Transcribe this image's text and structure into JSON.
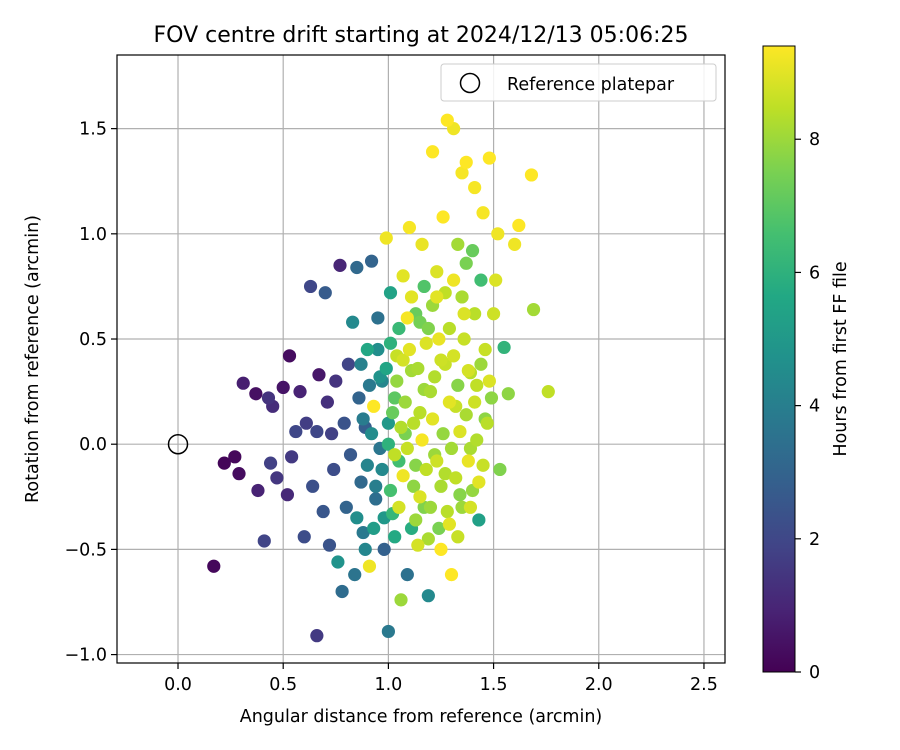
{
  "chart_data": {
    "type": "scatter",
    "title": "FOV centre drift starting at 2024/12/13 05:06:25",
    "xlabel": "Angular distance from reference (arcmin)",
    "ylabel": "Rotation from reference (arcmin)",
    "xlim": [
      -0.29,
      2.6
    ],
    "ylim": [
      -1.04,
      1.85
    ],
    "xticks": [
      0.0,
      0.5,
      1.0,
      1.5,
      2.0,
      2.5
    ],
    "xtick_labels": [
      "0.0",
      "0.5",
      "1.0",
      "1.5",
      "2.0",
      "2.5"
    ],
    "yticks": [
      -1.0,
      -0.5,
      0.0,
      0.5,
      1.0,
      1.5
    ],
    "ytick_labels": [
      "−1.0",
      "−0.5",
      "0.0",
      "0.5",
      "1.0",
      "1.5"
    ],
    "grid": true,
    "legend": {
      "position": "top-right",
      "entries": [
        {
          "label": "Reference platepar",
          "marker": "open-circle"
        }
      ]
    },
    "reference_point": {
      "x": 0.0,
      "y": 0.0
    },
    "colorbar": {
      "label": "Hours from first FF file",
      "min": 0,
      "max": 9.4,
      "ticks": [
        0,
        2,
        4,
        6,
        8
      ],
      "tick_labels": [
        "0",
        "2",
        "4",
        "6",
        "8"
      ],
      "colormap": "viridis"
    },
    "series": [
      {
        "color_by": "hours",
        "points": [
          [
            0.17,
            -0.58,
            0.2
          ],
          [
            0.22,
            -0.09,
            0.1
          ],
          [
            0.27,
            -0.06,
            0.2
          ],
          [
            0.29,
            -0.14,
            0.3
          ],
          [
            0.31,
            0.29,
            0.8
          ],
          [
            0.37,
            0.24,
            0.4
          ],
          [
            0.38,
            -0.22,
            0.9
          ],
          [
            0.41,
            -0.46,
            1.9
          ],
          [
            0.43,
            0.22,
            1.4
          ],
          [
            0.44,
            -0.09,
            1.8
          ],
          [
            0.45,
            0.18,
            1.2
          ],
          [
            0.47,
            -0.16,
            1.5
          ],
          [
            0.5,
            0.27,
            0.5
          ],
          [
            0.52,
            -0.24,
            1.1
          ],
          [
            0.53,
            0.42,
            0.3
          ],
          [
            0.54,
            -0.06,
            1.6
          ],
          [
            0.56,
            0.06,
            2.0
          ],
          [
            0.58,
            0.25,
            0.9
          ],
          [
            0.6,
            -0.44,
            2.2
          ],
          [
            0.61,
            0.1,
            1.7
          ],
          [
            0.63,
            0.75,
            2.0
          ],
          [
            0.64,
            -0.2,
            2.3
          ],
          [
            0.66,
            -0.91,
            1.6
          ],
          [
            0.66,
            0.06,
            2.0
          ],
          [
            0.67,
            0.33,
            0.6
          ],
          [
            0.69,
            -0.32,
            2.5
          ],
          [
            0.7,
            0.72,
            2.7
          ],
          [
            0.71,
            0.2,
            1.3
          ],
          [
            0.72,
            -0.48,
            2.4
          ],
          [
            0.73,
            0.05,
            1.8
          ],
          [
            0.74,
            -0.12,
            2.2
          ],
          [
            0.75,
            0.3,
            1.4
          ],
          [
            0.76,
            -0.56,
            4.8
          ],
          [
            0.77,
            0.85,
            1.0
          ],
          [
            0.78,
            -0.7,
            3.3
          ],
          [
            0.79,
            0.1,
            2.4
          ],
          [
            0.8,
            -0.3,
            3.0
          ],
          [
            0.81,
            0.38,
            1.9
          ],
          [
            0.82,
            -0.05,
            2.6
          ],
          [
            0.83,
            0.58,
            4.4
          ],
          [
            0.84,
            -0.62,
            3.6
          ],
          [
            0.85,
            0.84,
            3.2
          ],
          [
            0.86,
            0.22,
            3.0
          ],
          [
            0.87,
            -0.18,
            3.2
          ],
          [
            0.88,
            -0.42,
            3.8
          ],
          [
            0.89,
            0.08,
            2.8
          ],
          [
            0.9,
            0.45,
            5.6
          ],
          [
            0.91,
            -0.58,
            9.2
          ],
          [
            0.92,
            0.87,
            3.0
          ],
          [
            0.93,
            0.18,
            9.4
          ],
          [
            0.94,
            -0.26,
            3.4
          ],
          [
            0.95,
            0.6,
            3.5
          ],
          [
            0.96,
            -0.02,
            3.7
          ],
          [
            0.97,
            0.3,
            4.3
          ],
          [
            0.98,
            -0.5,
            2.9
          ],
          [
            0.99,
            0.98,
            9.2
          ],
          [
            1.0,
            0.1,
            5.0
          ],
          [
            1.0,
            -0.89,
            3.8
          ],
          [
            1.01,
            0.72,
            5.4
          ],
          [
            1.02,
            -0.33,
            6.2
          ],
          [
            1.03,
            0.22,
            7.0
          ],
          [
            1.04,
            0.42,
            8.6
          ],
          [
            1.05,
            -0.08,
            6.5
          ],
          [
            1.06,
            -0.74,
            8.0
          ],
          [
            1.07,
            0.8,
            9.0
          ],
          [
            1.08,
            0.05,
            7.5
          ],
          [
            1.09,
            -0.62,
            3.5
          ],
          [
            1.1,
            1.03,
            9.3
          ],
          [
            1.11,
            0.35,
            8.1
          ],
          [
            1.12,
            -0.2,
            7.8
          ],
          [
            1.13,
            0.62,
            7.2
          ],
          [
            1.14,
            -0.48,
            8.8
          ],
          [
            1.15,
            0.15,
            8.4
          ],
          [
            1.16,
            0.95,
            9.1
          ],
          [
            1.17,
            -0.3,
            7.6
          ],
          [
            1.18,
            0.48,
            8.9
          ],
          [
            1.19,
            -0.72,
            4.4
          ],
          [
            1.2,
            0.25,
            8.2
          ],
          [
            1.21,
            1.39,
            9.4
          ],
          [
            1.22,
            -0.05,
            8.0
          ],
          [
            1.23,
            0.7,
            9.0
          ],
          [
            1.24,
            -0.4,
            7.5
          ],
          [
            1.25,
            0.4,
            8.7
          ],
          [
            1.26,
            1.08,
            9.4
          ],
          [
            1.27,
            -0.14,
            8.3
          ],
          [
            1.28,
            1.54,
            9.4
          ],
          [
            1.29,
            0.55,
            8.4
          ],
          [
            1.3,
            -0.62,
            9.4
          ],
          [
            1.31,
            1.5,
            9.2
          ],
          [
            1.32,
            0.18,
            8.6
          ],
          [
            1.33,
            0.95,
            8.1
          ],
          [
            1.34,
            -0.24,
            7.7
          ],
          [
            1.35,
            1.29,
            9.3
          ],
          [
            1.36,
            0.62,
            8.9
          ],
          [
            1.37,
            1.34,
            9.4
          ],
          [
            1.38,
            0.35,
            8.8
          ],
          [
            1.39,
            -0.02,
            8.2
          ],
          [
            1.4,
            0.92,
            7.2
          ],
          [
            1.41,
            1.22,
            9.3
          ],
          [
            1.42,
            0.28,
            8.5
          ],
          [
            1.43,
            -0.36,
            5.3
          ],
          [
            1.44,
            0.78,
            6.5
          ],
          [
            1.45,
            1.1,
            9.3
          ],
          [
            1.46,
            0.45,
            8.6
          ],
          [
            1.47,
            0.1,
            8.4
          ],
          [
            1.48,
            1.36,
            9.4
          ],
          [
            1.49,
            0.22,
            7.8
          ],
          [
            1.5,
            0.62,
            8.7
          ],
          [
            1.51,
            0.78,
            8.9
          ],
          [
            1.52,
            1.0,
            9.2
          ],
          [
            1.53,
            -0.12,
            7.6
          ],
          [
            1.55,
            0.46,
            6.1
          ],
          [
            1.57,
            0.24,
            7.8
          ],
          [
            1.6,
            0.95,
            9.2
          ],
          [
            1.62,
            1.04,
            9.4
          ],
          [
            1.68,
            1.28,
            9.4
          ],
          [
            1.69,
            0.64,
            8.1
          ],
          [
            1.76,
            0.25,
            8.5
          ],
          [
            0.88,
            0.12,
            3.9
          ],
          [
            0.9,
            -0.1,
            4.2
          ],
          [
            0.92,
            0.05,
            4.5
          ],
          [
            0.94,
            -0.2,
            4.0
          ],
          [
            0.96,
            0.32,
            4.8
          ],
          [
            0.98,
            -0.35,
            5.0
          ],
          [
            1.0,
            0.0,
            6.0
          ],
          [
            1.01,
            -0.22,
            6.6
          ],
          [
            1.02,
            0.15,
            7.2
          ],
          [
            1.03,
            -0.05,
            8.5
          ],
          [
            1.04,
            0.3,
            7.9
          ],
          [
            1.05,
            -0.3,
            8.8
          ],
          [
            1.06,
            0.08,
            8.3
          ],
          [
            1.07,
            -0.15,
            9.2
          ],
          [
            1.08,
            0.2,
            8.0
          ],
          [
            1.09,
            -0.02,
            8.6
          ],
          [
            1.1,
            0.45,
            9.0
          ],
          [
            1.11,
            -0.4,
            5.8
          ],
          [
            1.12,
            0.1,
            8.4
          ],
          [
            1.13,
            -0.1,
            7.7
          ],
          [
            1.14,
            0.36,
            8.2
          ],
          [
            1.15,
            -0.25,
            8.9
          ],
          [
            1.16,
            0.02,
            9.3
          ],
          [
            1.17,
            0.26,
            8.0
          ],
          [
            1.18,
            -0.12,
            8.5
          ],
          [
            1.19,
            0.55,
            7.6
          ],
          [
            1.2,
            -0.3,
            8.0
          ],
          [
            1.21,
            0.12,
            9.0
          ],
          [
            1.22,
            0.32,
            8.3
          ],
          [
            1.23,
            -0.08,
            8.7
          ],
          [
            1.24,
            0.5,
            9.1
          ],
          [
            1.25,
            -0.2,
            8.2
          ],
          [
            1.26,
            0.05,
            7.9
          ],
          [
            1.27,
            0.38,
            8.6
          ],
          [
            1.28,
            -0.32,
            8.4
          ],
          [
            1.29,
            0.2,
            9.0
          ],
          [
            1.3,
            -0.02,
            8.1
          ],
          [
            1.31,
            0.42,
            8.8
          ],
          [
            1.32,
            -0.16,
            8.5
          ],
          [
            1.33,
            0.28,
            7.7
          ],
          [
            1.34,
            0.06,
            8.9
          ],
          [
            1.35,
            -0.3,
            8.0
          ],
          [
            1.36,
            0.5,
            8.6
          ],
          [
            1.37,
            0.14,
            8.2
          ],
          [
            1.38,
            -0.08,
            9.1
          ],
          [
            1.39,
            0.34,
            8.4
          ],
          [
            1.4,
            -0.22,
            7.9
          ],
          [
            1.41,
            0.2,
            8.7
          ],
          [
            1.42,
            0.02,
            8.3
          ],
          [
            1.44,
            0.38,
            8.0
          ],
          [
            1.45,
            -0.1,
            8.6
          ],
          [
            1.46,
            0.12,
            7.8
          ],
          [
            1.48,
            0.3,
            8.9
          ],
          [
            0.85,
            -0.35,
            4.6
          ],
          [
            0.87,
            0.38,
            4.1
          ],
          [
            0.89,
            -0.5,
            4.3
          ],
          [
            0.91,
            0.28,
            3.8
          ],
          [
            0.93,
            -0.4,
            5.2
          ],
          [
            0.95,
            0.45,
            4.6
          ],
          [
            0.97,
            -0.12,
            4.4
          ],
          [
            0.99,
            0.36,
            5.5
          ],
          [
            1.01,
            0.48,
            6.0
          ],
          [
            1.03,
            -0.44,
            5.7
          ],
          [
            1.05,
            0.55,
            6.3
          ],
          [
            1.07,
            0.4,
            8.8
          ],
          [
            1.09,
            0.6,
            9.3
          ],
          [
            1.11,
            0.7,
            9.0
          ],
          [
            1.13,
            -0.36,
            8.0
          ],
          [
            1.15,
            0.58,
            7.4
          ],
          [
            1.17,
            0.75,
            6.8
          ],
          [
            1.19,
            -0.45,
            8.2
          ],
          [
            1.21,
            0.66,
            8.0
          ],
          [
            1.23,
            0.82,
            8.9
          ],
          [
            1.25,
            -0.5,
            9.4
          ],
          [
            1.27,
            0.72,
            8.5
          ],
          [
            1.29,
            -0.38,
            9.0
          ],
          [
            1.31,
            0.78,
            9.2
          ],
          [
            1.33,
            -0.44,
            8.6
          ],
          [
            1.35,
            0.7,
            8.2
          ],
          [
            1.37,
            0.86,
            7.5
          ],
          [
            1.39,
            -0.3,
            8.8
          ],
          [
            1.41,
            0.62,
            8.4
          ],
          [
            1.43,
            -0.18,
            9.0
          ]
        ]
      }
    ]
  }
}
